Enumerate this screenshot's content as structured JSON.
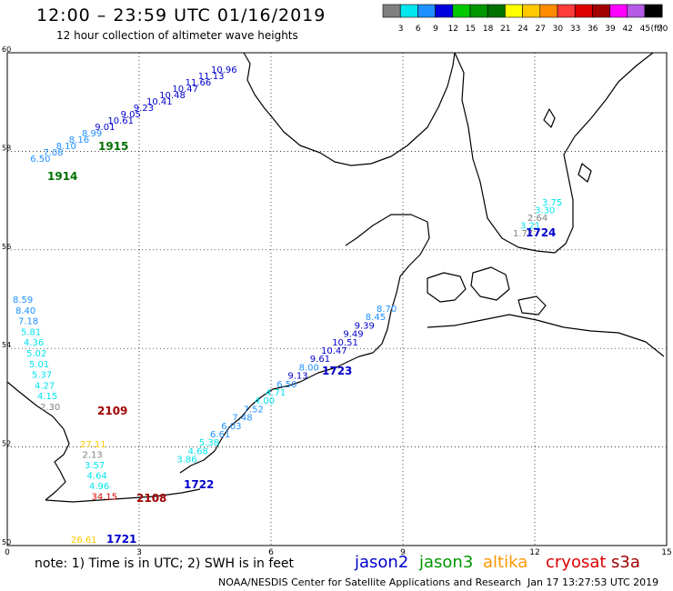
{
  "header": {
    "title": "12:00 – 23:59 UTC 01/16/2019",
    "subtitle": "12 hour collection of altimeter wave heights"
  },
  "legend": {
    "unit": "(ft)",
    "bins": [
      {
        "label": "3",
        "color": "#808080"
      },
      {
        "label": "6",
        "color": "#00e5ee"
      },
      {
        "label": "9",
        "color": "#1e90ff"
      },
      {
        "label": "12",
        "color": "#0000dd"
      },
      {
        "label": "15",
        "color": "#00c800"
      },
      {
        "label": "18",
        "color": "#009600"
      },
      {
        "label": "21",
        "color": "#007000"
      },
      {
        "label": "24",
        "color": "#ffff00"
      },
      {
        "label": "27",
        "color": "#ffc800"
      },
      {
        "label": "30",
        "color": "#ff8c00"
      },
      {
        "label": "33",
        "color": "#ff3c3c"
      },
      {
        "label": "36",
        "color": "#dd0000"
      },
      {
        "label": "39",
        "color": "#a00000"
      },
      {
        "label": "42",
        "color": "#ff00ff"
      },
      {
        "label": "45",
        "color": "#b45ae6"
      },
      {
        "label": "70",
        "color": "#000000"
      }
    ]
  },
  "axes": {
    "lon_ticks": [
      "0",
      "3",
      "6",
      "9",
      "12",
      "15"
    ],
    "lat_ticks": [
      "60",
      "58",
      "56",
      "54",
      "52",
      "50"
    ],
    "lon_range": [
      0,
      15
    ],
    "lat_range": [
      50,
      60
    ]
  },
  "tracks": [
    {
      "id": "1915",
      "color": "#0000cc",
      "label_color": "#007000",
      "labels": [
        {
          "t": "10.96",
          "c": "#0000cc"
        },
        {
          "t": "11.13",
          "c": "#0000cc"
        },
        {
          "t": "11.66",
          "c": "#0000cc"
        },
        {
          "t": "10.47",
          "c": "#0000cc"
        },
        {
          "t": "10.48",
          "c": "#0000cc"
        },
        {
          "t": "10.41",
          "c": "#0000cc"
        },
        {
          "t": "9.23",
          "c": "#0000cc"
        },
        {
          "t": "9.05",
          "c": "#0000cc"
        },
        {
          "t": "10.61",
          "c": "#0000cc"
        },
        {
          "t": "9.01",
          "c": "#0000cc"
        },
        {
          "t": "8.99",
          "c": "#1e90ff"
        },
        {
          "t": "8.16",
          "c": "#1e90ff"
        },
        {
          "t": "8.10",
          "c": "#1e90ff"
        },
        {
          "t": "7.08",
          "c": "#1e90ff"
        },
        {
          "t": "6.50",
          "c": "#1e90ff"
        }
      ]
    },
    {
      "id": "1914",
      "color": "#007000"
    },
    {
      "id": "1724",
      "color": "#0000cc",
      "labels": [
        {
          "t": "3.75",
          "c": "#00e5ee"
        },
        {
          "t": "3.30",
          "c": "#00e5ee"
        },
        {
          "t": "2.64",
          "c": "#808080"
        },
        {
          "t": "3.21",
          "c": "#00e5ee"
        },
        {
          "t": "1.77",
          "c": "#808080"
        }
      ]
    },
    {
      "id": "1723",
      "color": "#0000cc",
      "labels": [
        {
          "t": "8.70",
          "c": "#1e90ff"
        },
        {
          "t": "8.45",
          "c": "#1e90ff"
        },
        {
          "t": "9.39",
          "c": "#0000cc"
        },
        {
          "t": "9.49",
          "c": "#0000cc"
        },
        {
          "t": "10.51",
          "c": "#0000cc"
        },
        {
          "t": "10.47",
          "c": "#0000cc"
        },
        {
          "t": "9.61",
          "c": "#0000cc"
        },
        {
          "t": "8.00",
          "c": "#1e90ff"
        },
        {
          "t": "9.13",
          "c": "#0000cc"
        },
        {
          "t": "6.50",
          "c": "#1e90ff"
        },
        {
          "t": "4.71",
          "c": "#00e5ee"
        },
        {
          "t": "4.00",
          "c": "#00e5ee"
        },
        {
          "t": "7.52",
          "c": "#1e90ff"
        },
        {
          "t": "7.48",
          "c": "#1e90ff"
        },
        {
          "t": "6.03",
          "c": "#1e90ff"
        },
        {
          "t": "6.61",
          "c": "#1e90ff"
        },
        {
          "t": "5.38",
          "c": "#00e5ee"
        },
        {
          "t": "4.68",
          "c": "#00e5ee"
        },
        {
          "t": "3.86",
          "c": "#00e5ee"
        }
      ]
    },
    {
      "id": "2109",
      "color": "#a00000",
      "labels": [
        {
          "t": "8.59",
          "c": "#1e90ff"
        },
        {
          "t": "8.40",
          "c": "#1e90ff"
        },
        {
          "t": "7.18",
          "c": "#1e90ff"
        },
        {
          "t": "5.81",
          "c": "#00e5ee"
        },
        {
          "t": "4.36",
          "c": "#00e5ee"
        },
        {
          "t": "5.02",
          "c": "#00e5ee"
        },
        {
          "t": "5.01",
          "c": "#00e5ee"
        },
        {
          "t": "5.37",
          "c": "#00e5ee"
        },
        {
          "t": "4.27",
          "c": "#00e5ee"
        },
        {
          "t": "4.15",
          "c": "#00e5ee"
        },
        {
          "t": "2.30",
          "c": "#808080"
        }
      ]
    },
    {
      "id": "2108",
      "color": "#a00000",
      "labels": [
        {
          "t": "27.11",
          "c": "#ffc800"
        },
        {
          "t": "2.13",
          "c": "#808080"
        },
        {
          "t": "3.57",
          "c": "#00e5ee"
        },
        {
          "t": "4.64",
          "c": "#00e5ee"
        },
        {
          "t": "4.96",
          "c": "#00e5ee"
        },
        {
          "t": "34.15",
          "c": "#dd0000"
        }
      ]
    },
    {
      "id": "1722",
      "color": "#0000cc"
    },
    {
      "id": "1721",
      "color": "#0000cc",
      "labels": [
        {
          "t": "26.61",
          "c": "#ffc800"
        }
      ]
    }
  ],
  "footer": {
    "note": "note: 1) Time is in UTC; 2) SWH is in feet",
    "satellites": [
      {
        "name": "jason2",
        "color": "#0000cc"
      },
      {
        "name": "jason3",
        "color": "#009600"
      },
      {
        "name": "altika",
        "color": "#ff9600"
      },
      {
        "name": "cryosat",
        "color": "#dd0000"
      },
      {
        "name": "s3a",
        "color": "#a00000"
      }
    ],
    "credit": "NOAA/NESDIS Center for Satellite Applications and Research",
    "timestamp": "Jan 17 13:27:53 UTC 2019"
  }
}
